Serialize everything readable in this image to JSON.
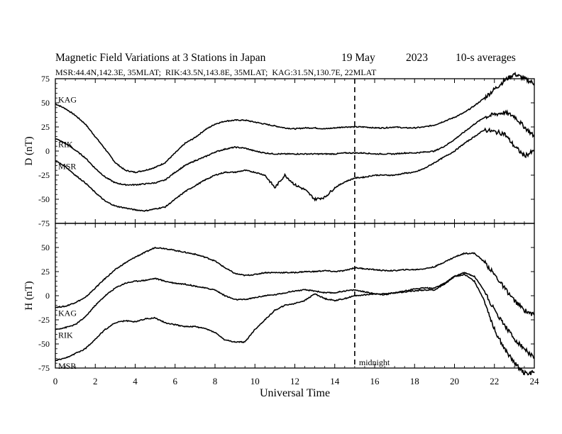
{
  "header": {
    "title": "Magnetic Field Variations at 3 Stations in Japan",
    "date": "19 May",
    "year": "2023",
    "averaging": "10-s averages",
    "stations_line": "MSR:44.4N,142.3E, 35MLAT;  RIK:43.5N,143.8E, 35MLAT;  KAG:31.5N,130.7E, 22MLAT"
  },
  "chart_data": [
    {
      "type": "line",
      "panel": "D",
      "ylabel": "D (nT)",
      "xlabel": "Universal Time",
      "xlim": [
        0,
        24
      ],
      "ylim": [
        -75,
        75
      ],
      "yticks": [
        75,
        50,
        25,
        0,
        -25,
        -50,
        -75
      ],
      "xticks": [
        0,
        2,
        4,
        6,
        8,
        10,
        12,
        14,
        16,
        18,
        20,
        22,
        24
      ],
      "annotation": {
        "x": 15,
        "label": ""
      },
      "series": [
        {
          "name": "KAG",
          "color": "#000000",
          "x": [
            0,
            0.5,
            1,
            1.5,
            2,
            2.5,
            3,
            3.5,
            4,
            4.5,
            5,
            5.5,
            6,
            6.5,
            7,
            7.5,
            8,
            8.5,
            9,
            9.5,
            10,
            10.5,
            11,
            11.5,
            12,
            12.5,
            13,
            13.5,
            14,
            14.5,
            15,
            15.5,
            16,
            16.5,
            17,
            17.5,
            18,
            18.5,
            19,
            19.5,
            20,
            20.5,
            21,
            21.5,
            22,
            22.5,
            23,
            23.5,
            24
          ],
          "y": [
            49,
            44,
            37,
            28,
            15,
            2,
            -12,
            -20,
            -22,
            -20,
            -17,
            -12,
            -2,
            8,
            14,
            22,
            28,
            31,
            32,
            32,
            30,
            28,
            26,
            24,
            23,
            24,
            24,
            23,
            24,
            25,
            25,
            25,
            24,
            24,
            25,
            24,
            24,
            25,
            27,
            31,
            35,
            40,
            47,
            55,
            64,
            73,
            80,
            75,
            70
          ]
        },
        {
          "name": "RIK",
          "color": "#000000",
          "x": [
            0,
            0.5,
            1,
            1.5,
            2,
            2.5,
            3,
            3.5,
            4,
            4.5,
            5,
            5.5,
            6,
            6.5,
            7,
            7.5,
            8,
            8.5,
            9,
            9.5,
            10,
            10.5,
            11,
            11.5,
            12,
            12.5,
            13,
            13.5,
            14,
            14.5,
            15,
            15.5,
            16,
            16.5,
            17,
            17.5,
            18,
            18.5,
            19,
            19.5,
            20,
            20.5,
            21,
            21.5,
            22,
            22.5,
            23,
            23.5,
            24
          ],
          "y": [
            13,
            8,
            1,
            -7,
            -18,
            -27,
            -33,
            -35,
            -35,
            -34,
            -33,
            -30,
            -22,
            -15,
            -10,
            -6,
            -1,
            2,
            4,
            3,
            0,
            -2,
            -3,
            -3,
            -3,
            -3,
            -3,
            -3,
            -3,
            -2,
            -2,
            -2,
            -3,
            -3,
            -3,
            -2,
            -2,
            -1,
            0,
            5,
            12,
            20,
            28,
            35,
            38,
            40,
            36,
            25,
            15
          ]
        },
        {
          "name": "MSR",
          "color": "#000000",
          "x": [
            0,
            0.5,
            1,
            1.5,
            2,
            2.5,
            3,
            3.5,
            4,
            4.5,
            5,
            5.5,
            6,
            6.5,
            7,
            7.5,
            8,
            8.5,
            9,
            9.5,
            10,
            10.5,
            11,
            11.5,
            12,
            12.5,
            13,
            13.5,
            14,
            14.5,
            15,
            15.5,
            16,
            16.5,
            17,
            17.5,
            18,
            18.5,
            19,
            19.5,
            20,
            20.5,
            21,
            21.5,
            22,
            22.5,
            23,
            23.5,
            24
          ],
          "y": [
            -10,
            -16,
            -25,
            -33,
            -43,
            -52,
            -57,
            -59,
            -61,
            -62,
            -60,
            -58,
            -50,
            -42,
            -36,
            -30,
            -25,
            -22,
            -22,
            -20,
            -22,
            -25,
            -38,
            -25,
            -35,
            -40,
            -50,
            -48,
            -38,
            -32,
            -28,
            -27,
            -25,
            -25,
            -25,
            -23,
            -22,
            -18,
            -12,
            -6,
            0,
            8,
            15,
            22,
            20,
            18,
            5,
            -5,
            0
          ]
        }
      ]
    },
    {
      "type": "line",
      "panel": "H",
      "ylabel": "H (nT)",
      "xlabel": "Universal Time",
      "xlim": [
        0,
        24
      ],
      "ylim": [
        -75,
        75
      ],
      "yticks": [
        75,
        50,
        25,
        0,
        -25,
        -50,
        -75
      ],
      "xticks": [
        0,
        2,
        4,
        6,
        8,
        10,
        12,
        14,
        16,
        18,
        20,
        22,
        24
      ],
      "annotation": {
        "x": 15,
        "label": "midnight"
      },
      "series": [
        {
          "name": "KAG",
          "color": "#000000",
          "x": [
            0,
            0.5,
            1,
            1.5,
            2,
            2.5,
            3,
            3.5,
            4,
            4.5,
            5,
            5.5,
            6,
            6.5,
            7,
            7.5,
            8,
            8.5,
            9,
            9.5,
            10,
            10.5,
            11,
            11.5,
            12,
            12.5,
            13,
            13.5,
            14,
            14.5,
            15,
            15.5,
            16,
            16.5,
            17,
            17.5,
            18,
            18.5,
            19,
            19.5,
            20,
            20.5,
            21,
            21.5,
            22,
            22.5,
            23,
            23.5,
            24
          ],
          "y": [
            -12,
            -11,
            -7,
            -2,
            8,
            18,
            27,
            34,
            40,
            45,
            50,
            49,
            47,
            45,
            43,
            40,
            36,
            29,
            23,
            21,
            22,
            24,
            24,
            24,
            24,
            25,
            25,
            26,
            25,
            26,
            29,
            28,
            27,
            26,
            26,
            27,
            27,
            28,
            30,
            35,
            40,
            44,
            44,
            35,
            22,
            8,
            -5,
            -15,
            -20
          ]
        },
        {
          "name": "RIK",
          "color": "#000000",
          "x": [
            0,
            0.5,
            1,
            1.5,
            2,
            2.5,
            3,
            3.5,
            4,
            4.5,
            5,
            5.5,
            6,
            6.5,
            7,
            7.5,
            8,
            8.5,
            9,
            9.5,
            10,
            10.5,
            11,
            11.5,
            12,
            12.5,
            13,
            13.5,
            14,
            14.5,
            15,
            15.5,
            16,
            16.5,
            17,
            17.5,
            18,
            18.5,
            19,
            19.5,
            20,
            20.5,
            21,
            21.5,
            22,
            22.5,
            23,
            23.5,
            24
          ],
          "y": [
            -35,
            -33,
            -30,
            -22,
            -10,
            0,
            8,
            13,
            15,
            16,
            18,
            15,
            13,
            12,
            10,
            8,
            6,
            0,
            -4,
            -4,
            -2,
            0,
            1,
            3,
            5,
            6,
            5,
            3,
            3,
            5,
            6,
            4,
            2,
            2,
            3,
            4,
            5,
            6,
            6,
            12,
            20,
            24,
            20,
            5,
            -15,
            -30,
            -45,
            -55,
            -65
          ]
        },
        {
          "name": "MSR",
          "color": "#000000",
          "x": [
            0,
            0.5,
            1,
            1.5,
            2,
            2.5,
            3,
            3.5,
            4,
            4.5,
            5,
            5.5,
            6,
            6.5,
            7,
            7.5,
            8,
            8.5,
            9,
            9.5,
            10,
            10.5,
            11,
            11.5,
            12,
            12.5,
            13,
            13.5,
            14,
            14.5,
            15,
            15.5,
            16,
            16.5,
            17,
            17.5,
            18,
            18.5,
            19,
            19.5,
            20,
            20.5,
            21,
            21.5,
            22,
            22.5,
            23,
            23.5,
            24
          ],
          "y": [
            -67,
            -65,
            -60,
            -55,
            -45,
            -35,
            -28,
            -26,
            -27,
            -24,
            -23,
            -28,
            -30,
            -32,
            -32,
            -34,
            -38,
            -46,
            -48,
            -48,
            -35,
            -25,
            -15,
            -10,
            -8,
            -5,
            2,
            -3,
            -5,
            -3,
            0,
            1,
            2,
            1,
            3,
            5,
            7,
            8,
            8,
            13,
            20,
            22,
            15,
            -5,
            -35,
            -55,
            -70,
            -80,
            -80
          ]
        }
      ]
    }
  ]
}
